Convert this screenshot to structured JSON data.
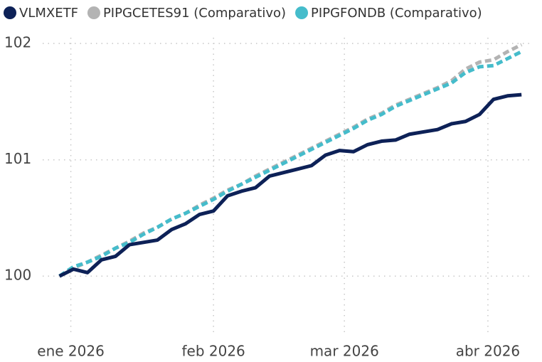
{
  "chart_data": {
    "type": "line",
    "xlim": [
      -1.2,
      33.6
    ],
    "xticks": [
      {
        "value": 0.81,
        "label": "ene 2026"
      },
      {
        "value": 11.0,
        "label": "feb 2026"
      },
      {
        "value": 20.35,
        "label": "mar 2026"
      },
      {
        "value": 30.6,
        "label": "abr 2026"
      }
    ],
    "ylim": [
      99.5,
      102.05
    ],
    "yticks": [
      100,
      101,
      102
    ],
    "grid": true,
    "legend": "top-left",
    "series": [
      {
        "name": "VLMXETF",
        "color": "#0d2157",
        "values": [
          100.0,
          100.06,
          100.03,
          100.14,
          100.17,
          100.27,
          100.29,
          100.31,
          100.4,
          100.45,
          100.53,
          100.56,
          100.69,
          100.73,
          100.76,
          100.86,
          100.89,
          100.92,
          100.95,
          101.04,
          101.08,
          101.07,
          101.13,
          101.16,
          101.17,
          101.22,
          101.24,
          101.26,
          101.31,
          101.33,
          101.39,
          101.52,
          101.55,
          101.56
        ]
      },
      {
        "name": "PIPGCETES91 (Comparativo)",
        "color": "#b3b3b3",
        "values": [
          100.0,
          100.07,
          100.12,
          100.18,
          100.24,
          100.3,
          100.37,
          100.42,
          100.49,
          100.54,
          100.61,
          100.67,
          100.74,
          100.79,
          100.86,
          100.92,
          100.98,
          101.04,
          101.1,
          101.16,
          101.22,
          101.28,
          101.35,
          101.4,
          101.47,
          101.52,
          101.57,
          101.62,
          101.68,
          101.78,
          101.84,
          101.86,
          101.93,
          101.99
        ]
      },
      {
        "name": "PIPGFONDB (Comparativo)",
        "color": "#45bccb",
        "values": [
          100.0,
          100.08,
          100.12,
          100.17,
          100.24,
          100.29,
          100.36,
          100.42,
          100.49,
          100.54,
          100.6,
          100.66,
          100.73,
          100.79,
          100.85,
          100.91,
          100.97,
          101.03,
          101.09,
          101.15,
          101.21,
          101.27,
          101.34,
          101.39,
          101.46,
          101.51,
          101.56,
          101.61,
          101.66,
          101.75,
          101.8,
          101.81,
          101.87,
          101.93
        ]
      }
    ]
  }
}
